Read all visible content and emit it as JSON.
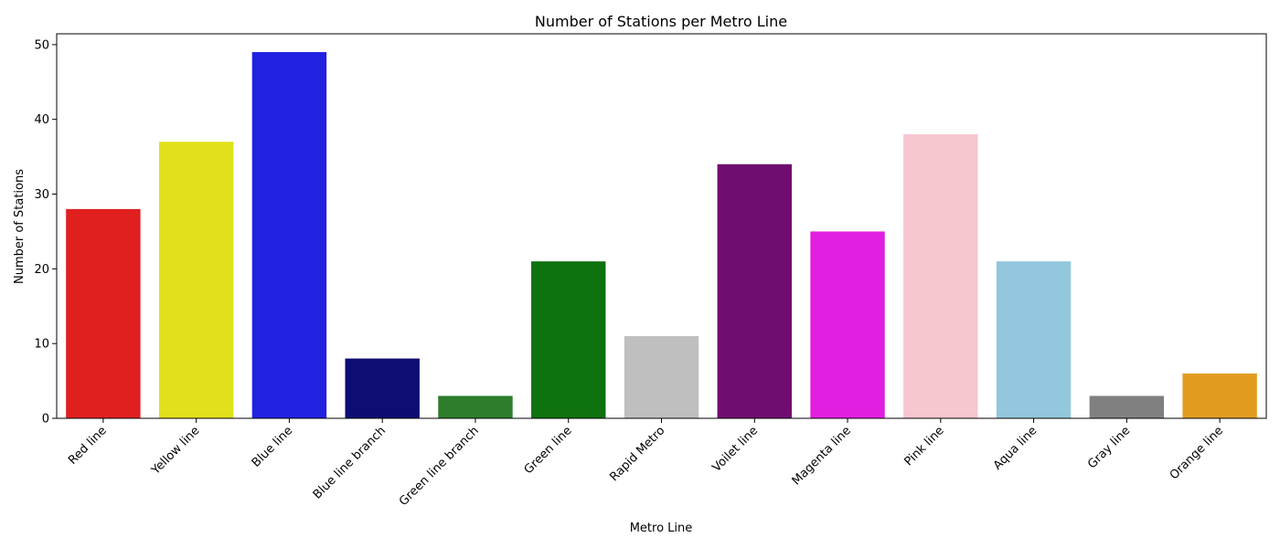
{
  "chart_data": {
    "type": "bar",
    "title": "Number of Stations per Metro Line",
    "xlabel": "Metro Line",
    "ylabel": "Number of Stations",
    "ylim": [
      0,
      51.45
    ],
    "yticks": [
      0,
      10,
      20,
      30,
      40,
      50
    ],
    "grid": false,
    "legend": "none",
    "categories": [
      "Red line",
      "Yellow line",
      "Blue line",
      "Blue line branch",
      "Green line branch",
      "Green line",
      "Rapid Metro",
      "Voilet line",
      "Magenta line",
      "Pink line",
      "Aqua line",
      "Gray line",
      "Orange line"
    ],
    "values": [
      28,
      37,
      49,
      8,
      3,
      21,
      11,
      34,
      25,
      38,
      21,
      3,
      6
    ],
    "colors": [
      "#e01f1f",
      "#e1e01c",
      "#2121e2",
      "#0d0d73",
      "#2d7d2d",
      "#0e720e",
      "#bfbfbf",
      "#700d70",
      "#e01fe0",
      "#f8c6cf",
      "#93c7dd",
      "#808080",
      "#e19c20"
    ]
  }
}
